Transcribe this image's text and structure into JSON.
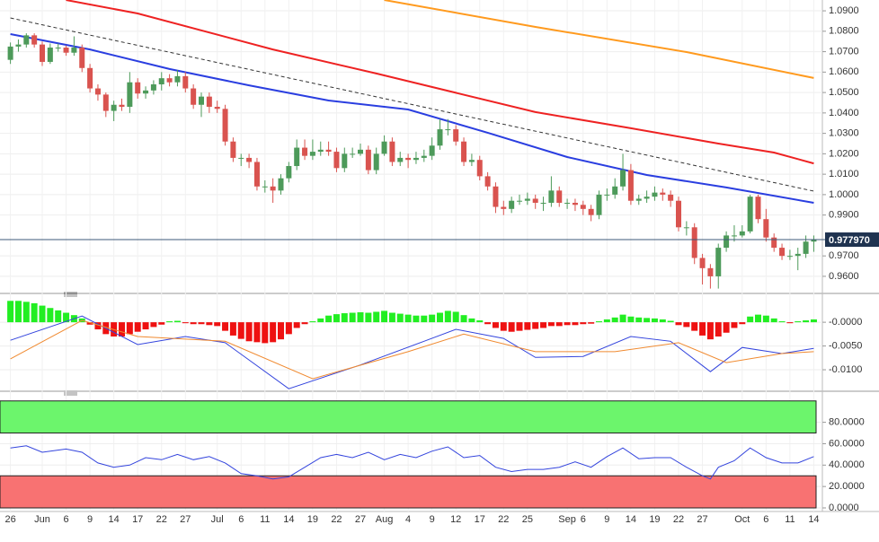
{
  "chart_data": [
    {
      "type": "candlestick",
      "categories": [
        "26",
        null,
        null,
        null,
        "Jun",
        null,
        null,
        "6",
        null,
        null,
        "9",
        null,
        null,
        "14",
        null,
        null,
        "17",
        null,
        null,
        "22",
        null,
        null,
        "27",
        null,
        null,
        null,
        "Jul",
        null,
        null,
        "6",
        null,
        null,
        "11",
        null,
        null,
        "14",
        null,
        null,
        "19",
        null,
        null,
        "22",
        null,
        null,
        "27",
        null,
        null,
        "Aug",
        null,
        null,
        "4",
        null,
        null,
        "9",
        null,
        null,
        "12",
        null,
        null,
        "17",
        null,
        null,
        "22",
        null,
        null,
        "25",
        null,
        null,
        null,
        null,
        "Sep",
        null,
        "6",
        null,
        null,
        "9",
        null,
        null,
        "14",
        null,
        null,
        "19",
        null,
        null,
        "22",
        null,
        null,
        "27",
        null,
        null,
        null,
        null,
        "Oct",
        null,
        null,
        "6",
        null,
        null,
        "11",
        null,
        null,
        "14"
      ],
      "open": [
        1.066,
        1.0725,
        1.0735,
        1.078,
        1.0735,
        1.065,
        1.072,
        1.072,
        1.0695,
        1.072,
        1.062,
        1.052,
        1.049,
        1.041,
        1.044,
        1.043,
        1.055,
        1.0495,
        1.051,
        1.054,
        1.057,
        1.055,
        1.058,
        1.052,
        1.044,
        1.048,
        1.043,
        1.042,
        1.026,
        1.018,
        1.018,
        1.016,
        1.004,
        1.004,
        1.002,
        1.008,
        1.014,
        1.023,
        1.019,
        1.021,
        1.022,
        1.021,
        1.013,
        1.02,
        1.02,
        1.022,
        1.012,
        1.02,
        1.026,
        1.016,
        1.018,
        1.017,
        1.018,
        1.019,
        1.024,
        1.032,
        1.032,
        1.026,
        1.016,
        1.017,
        1.009,
        1.004,
        0.994,
        0.993,
        0.997,
        0.997,
        0.998,
        0.996,
        0.996,
        1.002,
        0.996,
        0.996,
        0.995,
        0.993,
        0.99,
        1.0,
        1.0,
        1.004,
        1.012,
        0.997,
        0.998,
        0.999,
        1.001,
        1.0,
        0.997,
        0.984,
        0.984,
        0.969,
        0.964,
        0.96,
        0.974,
        0.98,
        0.98,
        0.982,
        0.999,
        0.988,
        0.979,
        0.974,
        0.97,
        0.97,
        0.971,
        0.977
      ],
      "high": [
        1.0745,
        1.076,
        1.079,
        1.079,
        1.075,
        1.074,
        1.074,
        1.073,
        1.0775,
        1.0735,
        1.064,
        1.054,
        1.05,
        1.046,
        1.047,
        1.06,
        1.057,
        1.053,
        1.056,
        1.06,
        1.059,
        1.061,
        1.06,
        1.054,
        1.05,
        1.05,
        1.046,
        1.044,
        1.028,
        1.02,
        1.02,
        1.018,
        1.007,
        1.008,
        1.01,
        1.016,
        1.027,
        1.027,
        1.027,
        1.026,
        1.026,
        1.023,
        1.023,
        1.023,
        1.025,
        1.024,
        1.023,
        1.029,
        1.028,
        1.021,
        1.02,
        1.021,
        1.022,
        1.028,
        1.037,
        1.037,
        1.034,
        1.028,
        1.02,
        1.019,
        1.011,
        1.006,
        0.997,
        0.999,
        1.0,
        1.001,
        1.0,
        0.999,
        1.009,
        1.004,
        0.998,
        0.998,
        0.997,
        0.995,
        1.002,
        1.003,
        1.008,
        1.02,
        1.015,
        1.0,
        1.002,
        1.004,
        1.003,
        1.002,
        0.999,
        0.987,
        0.986,
        0.971,
        0.966,
        0.976,
        0.982,
        0.985,
        0.985,
        0.9999,
        1.0,
        0.993,
        0.981,
        0.976,
        0.973,
        0.974,
        0.98,
        0.98
      ],
      "low": [
        1.064,
        1.07,
        1.072,
        1.072,
        1.063,
        1.064,
        1.07,
        1.068,
        1.068,
        1.06,
        1.05,
        1.046,
        1.038,
        1.036,
        1.041,
        1.04,
        1.047,
        1.047,
        1.049,
        1.051,
        1.053,
        1.053,
        1.05,
        1.042,
        1.038,
        1.04,
        1.04,
        1.024,
        1.016,
        1.014,
        1.013,
        1.002,
        1.001,
        0.996,
        1.0,
        1.006,
        1.012,
        1.017,
        1.017,
        1.019,
        1.019,
        1.011,
        1.011,
        1.018,
        1.019,
        1.01,
        1.01,
        1.019,
        1.014,
        1.014,
        1.013,
        1.015,
        1.016,
        1.017,
        1.022,
        1.029,
        1.024,
        1.014,
        1.014,
        1.007,
        1.002,
        0.991,
        0.99,
        0.991,
        0.995,
        0.995,
        0.993,
        0.992,
        0.994,
        0.994,
        0.993,
        0.992,
        0.99,
        0.987,
        0.988,
        0.997,
        0.998,
        1.002,
        0.995,
        0.995,
        0.996,
        0.997,
        0.997,
        0.994,
        0.982,
        0.98,
        0.966,
        0.956,
        0.954,
        0.954,
        0.972,
        0.977,
        0.979,
        0.981,
        0.986,
        0.977,
        0.972,
        0.968,
        0.968,
        0.963,
        0.969,
        0.972
      ],
      "close": [
        1.0725,
        1.0735,
        1.078,
        1.0735,
        1.065,
        1.072,
        1.072,
        1.0695,
        1.072,
        1.062,
        1.052,
        1.049,
        1.041,
        1.044,
        1.043,
        1.055,
        1.0495,
        1.051,
        1.054,
        1.057,
        1.055,
        1.058,
        1.052,
        1.044,
        1.048,
        1.043,
        1.042,
        1.026,
        1.018,
        1.018,
        1.016,
        1.004,
        1.004,
        1.002,
        1.008,
        1.014,
        1.023,
        1.019,
        1.021,
        1.022,
        1.021,
        1.013,
        1.02,
        1.02,
        1.022,
        1.012,
        1.02,
        1.026,
        1.016,
        1.018,
        1.017,
        1.018,
        1.019,
        1.024,
        1.032,
        1.032,
        1.026,
        1.016,
        1.017,
        1.009,
        1.004,
        0.994,
        0.993,
        0.997,
        0.997,
        0.998,
        0.996,
        0.996,
        1.002,
        0.996,
        0.996,
        0.995,
        0.993,
        0.99,
        1.0,
        1.0,
        1.004,
        1.012,
        0.997,
        0.998,
        0.999,
        1.001,
        1.0,
        0.997,
        0.984,
        0.984,
        0.969,
        0.964,
        0.96,
        0.974,
        0.98,
        0.98,
        0.982,
        0.999,
        0.988,
        0.979,
        0.974,
        0.97,
        0.97,
        0.971,
        0.977,
        0.978
      ],
      "up_color": "#4d9a5a",
      "down_color": "#d9534f",
      "ylim": [
        0.9525,
        1.0953
      ],
      "yticks": [
        {
          "value": 1.09,
          "label": "1.0900"
        },
        {
          "value": 1.08,
          "label": "1.0800"
        },
        {
          "value": 1.07,
          "label": "1.0700"
        },
        {
          "value": 1.06,
          "label": "1.0600"
        },
        {
          "value": 1.05,
          "label": "1.0500"
        },
        {
          "value": 1.04,
          "label": "1.0400"
        },
        {
          "value": 1.03,
          "label": "1.0300"
        },
        {
          "value": 1.02,
          "label": "1.0200"
        },
        {
          "value": 1.01,
          "label": "1.0100"
        },
        {
          "value": 1.0,
          "label": "1.0000"
        },
        {
          "value": 0.99,
          "label": "0.9900"
        },
        {
          "value": 0.97,
          "label": "0.9700"
        },
        {
          "value": 0.96,
          "label": "0.9600"
        }
      ],
      "current": {
        "value": 0.97797,
        "label": "0.977970"
      },
      "lines": [
        {
          "color": "#ff9a1e",
          "dashed": false,
          "x": [
            47,
            66,
            85,
            101
          ],
          "values": [
            1.0953,
            1.0821,
            1.0698,
            1.0571
          ]
        },
        {
          "color": "#ee2222",
          "dashed": false,
          "x": [
            7,
            16,
            33,
            46,
            66,
            78,
            89,
            96,
            101
          ],
          "values": [
            1.0953,
            1.0887,
            1.0711,
            1.0593,
            1.0404,
            1.0325,
            1.025,
            1.0206,
            1.0153
          ]
        },
        {
          "color": "#2a3ee0",
          "dashed": false,
          "x": [
            0,
            10,
            20,
            30,
            40,
            50,
            60,
            70,
            80,
            90,
            101
          ],
          "values": [
            1.0786,
            1.0711,
            1.0615,
            1.0535,
            1.0461,
            1.0417,
            1.0303,
            1.0184,
            1.0096,
            1.0035,
            0.996
          ]
        },
        {
          "color": "#333333",
          "dashed": true,
          "x": [
            0,
            101
          ],
          "values": [
            1.0865,
            1.0017
          ]
        }
      ]
    },
    {
      "type": "macd",
      "ylim": [
        -0.01415,
        0.0055
      ],
      "yticks": [
        {
          "value": 0,
          "label": "-0.0000"
        },
        {
          "value": -0.005,
          "label": "-0.0050"
        },
        {
          "value": -0.01,
          "label": "-0.0100"
        }
      ],
      "up_color": "#22ee22",
      "down_color": "#ee1111",
      "histogram": [
        0.0045,
        0.0045,
        0.0043,
        0.004,
        0.0035,
        0.003,
        0.0025,
        0.002,
        0.0015,
        0.0008,
        -0.0005,
        -0.0015,
        -0.0025,
        -0.003,
        -0.003,
        -0.0025,
        -0.002,
        -0.0015,
        -0.001,
        -0.0005,
        0.0002,
        0.0003,
        -0.0002,
        -0.0004,
        -0.0004,
        -0.0006,
        -0.0008,
        -0.0018,
        -0.0028,
        -0.0035,
        -0.004,
        -0.0042,
        -0.0044,
        -0.0042,
        -0.0036,
        -0.0025,
        -0.0012,
        -0.0004,
        0.0002,
        0.0008,
        0.0014,
        0.0017,
        0.0019,
        0.002,
        0.0021,
        0.002,
        0.0022,
        0.0024,
        0.002,
        0.0018,
        0.0016,
        0.0014,
        0.0014,
        0.0016,
        0.002,
        0.0024,
        0.0022,
        0.0015,
        0.0008,
        0.0004,
        -0.0004,
        -0.0012,
        -0.0018,
        -0.002,
        -0.0018,
        -0.0016,
        -0.0014,
        -0.0012,
        -0.0008,
        -0.0008,
        -0.0006,
        -0.0006,
        -0.0004,
        -0.0003,
        0.0002,
        0.0006,
        0.001,
        0.0016,
        0.0012,
        0.001,
        0.0009,
        0.0008,
        0.0006,
        0.0003,
        -0.0006,
        -0.001,
        -0.0018,
        -0.0028,
        -0.0036,
        -0.003,
        -0.0022,
        -0.0012,
        -0.0004,
        0.0012,
        0.0016,
        0.0014,
        0.0008,
        0.0002,
        -0.0002,
        0.0002,
        0.0004,
        0.0006
      ],
      "series": [
        {
          "color": "#3344dd",
          "x": [
            0,
            9,
            16,
            22,
            27,
            35,
            44,
            52,
            56,
            62,
            66,
            72,
            78,
            83,
            88,
            92,
            97,
            101
          ],
          "values": [
            -0.0038,
            0.0013,
            -0.0047,
            -0.003,
            -0.0043,
            -0.014,
            -0.009,
            -0.004,
            -0.0015,
            -0.0034,
            -0.0074,
            -0.0072,
            -0.003,
            -0.004,
            -0.0104,
            -0.0053,
            -0.0066,
            -0.0055
          ]
        },
        {
          "color": "#f08a30",
          "x": [
            0,
            9,
            16,
            27,
            38,
            50,
            57,
            66,
            76,
            84,
            90,
            97,
            101
          ],
          "values": [
            -0.0077,
            0.0004,
            -0.003,
            -0.004,
            -0.0119,
            -0.0062,
            -0.0025,
            -0.0062,
            -0.0062,
            -0.0043,
            -0.0085,
            -0.0066,
            -0.0062
          ]
        }
      ]
    },
    {
      "type": "rsi",
      "ylim": [
        0,
        104
      ],
      "yticks": [
        {
          "value": 80,
          "label": "80.0000"
        },
        {
          "value": 60,
          "label": "60.0000"
        },
        {
          "value": 40,
          "label": "40.0000"
        },
        {
          "value": 20,
          "label": "20.0000"
        },
        {
          "value": 0,
          "label": "0.0000"
        }
      ],
      "bands": [
        {
          "from": 70,
          "to": 100,
          "color": "#6cf56c"
        },
        {
          "from": 0,
          "to": 30,
          "color": "#f87272"
        }
      ],
      "series": [
        {
          "color": "#3344dd",
          "x": [
            0,
            2,
            4,
            7,
            9,
            11,
            13,
            15,
            17,
            19,
            21,
            23,
            25,
            27,
            29,
            31,
            33,
            35,
            37,
            39,
            41,
            43,
            45,
            47,
            49,
            51,
            53,
            55,
            57,
            59,
            61,
            63,
            65,
            67,
            69,
            71,
            73,
            75,
            77,
            79,
            81,
            83,
            85,
            87,
            88,
            89,
            91,
            93,
            95,
            97,
            99,
            101
          ],
          "values": [
            56,
            58,
            52,
            55,
            52,
            42,
            38,
            40,
            47,
            45,
            50,
            45,
            48,
            42,
            32,
            30,
            27,
            29,
            38,
            47,
            50,
            47,
            52,
            45,
            50,
            47,
            53,
            57,
            47,
            49,
            38,
            34,
            36,
            36,
            38,
            43,
            38,
            48,
            56,
            46,
            47,
            47,
            38,
            30,
            27,
            38,
            44,
            56,
            47,
            42,
            42,
            48
          ]
        }
      ]
    }
  ]
}
